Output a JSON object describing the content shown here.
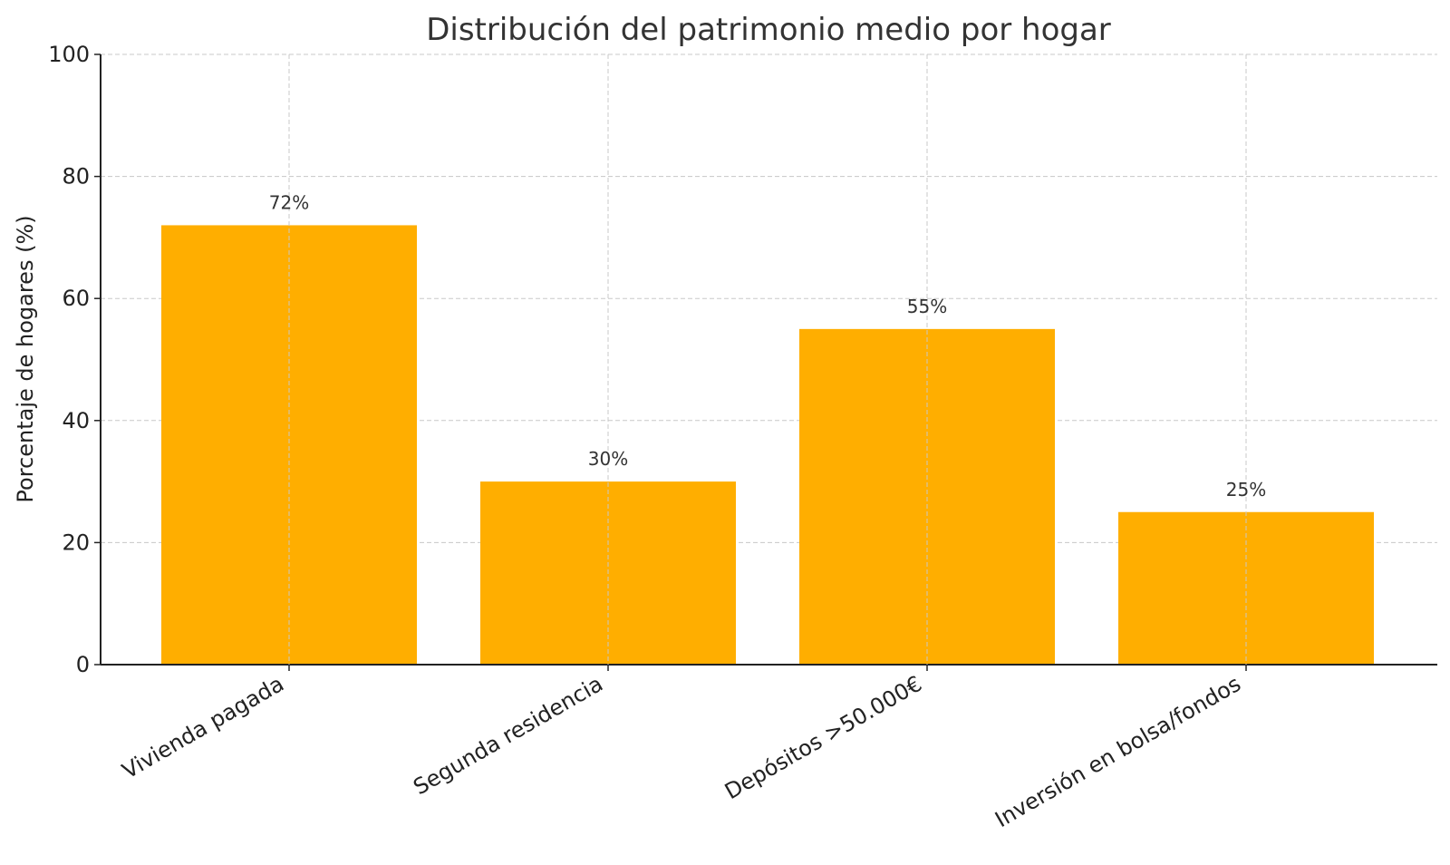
{
  "chart_data": {
    "type": "bar",
    "title": "Distribución del patrimonio medio por hogar",
    "xlabel": "",
    "ylabel": "Porcentaje de hogares (%)",
    "categories": [
      "Vivienda pagada",
      "Segunda residencia",
      "Depósitos >50.000€",
      "Inversión en bolsa/fondos"
    ],
    "values": [
      72,
      30,
      55,
      25
    ],
    "data_labels": [
      "72%",
      "30%",
      "55%",
      "25%"
    ],
    "ylim": [
      0,
      100
    ],
    "yticks": [
      0,
      20,
      40,
      60,
      80,
      100
    ],
    "grid": true,
    "bar_color": "#FFAE00"
  }
}
